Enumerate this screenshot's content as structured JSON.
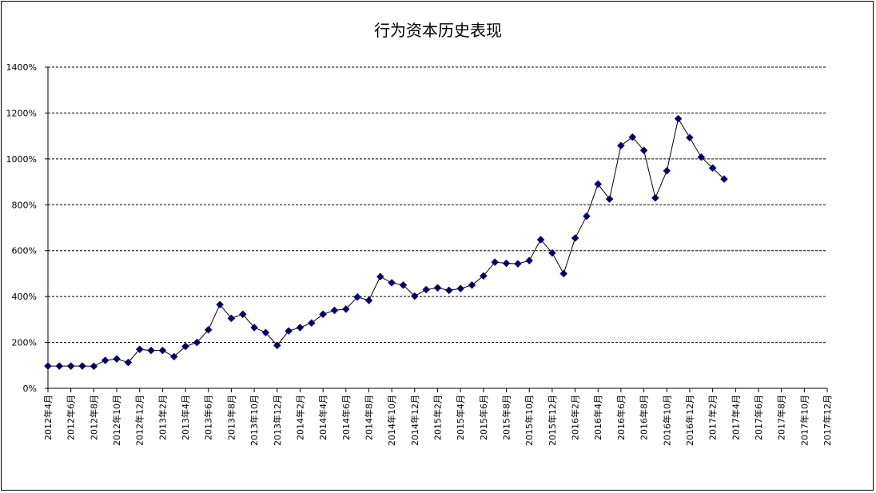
{
  "chart_data": {
    "type": "line",
    "title": "行为资本历史表现",
    "xlabel": "",
    "ylabel": "",
    "ylim": [
      0,
      1400
    ],
    "y_tick_labels": [
      "0%",
      "200%",
      "400%",
      "600%",
      "800%",
      "1000%",
      "1200%",
      "1400%"
    ],
    "y_tick_values": [
      0,
      200,
      400,
      600,
      800,
      1000,
      1200,
      1400
    ],
    "x_tick_labels": [
      "2012年4月",
      "2012年6月",
      "2012年8月",
      "2012年10月",
      "2012年12月",
      "2013年2月",
      "2013年4月",
      "2013年6月",
      "2013年8月",
      "2013年10月",
      "2013年12月",
      "2014年2月",
      "2014年4月",
      "2014年6月",
      "2014年8月",
      "2014年10月",
      "2014年12月",
      "2015年2月",
      "2015年4月",
      "2015年6月",
      "2015年8月",
      "2015年10月",
      "2015年12月",
      "2016年2月",
      "2016年4月",
      "2016年6月",
      "2016年8月",
      "2016年10月",
      "2016年12月",
      "2017年2月",
      "2017年4月",
      "2017年6月",
      "2017年8月",
      "2017年10月",
      "2017年12月"
    ],
    "grid": true,
    "line_color": "#000000",
    "marker_color": "#000066",
    "marker": "diamond",
    "series": [
      {
        "values": [
          97,
          97,
          97,
          97,
          96,
          122,
          128,
          113,
          170,
          165,
          165,
          138,
          183,
          200,
          255,
          365,
          305,
          323,
          265,
          243,
          187,
          250,
          265,
          285,
          323,
          340,
          345,
          398,
          383,
          487,
          460,
          450,
          402,
          430,
          438,
          427,
          435,
          450,
          490,
          550,
          545,
          543,
          557,
          648,
          590,
          500,
          655,
          750,
          890,
          825,
          1058,
          1095,
          1037,
          830,
          948,
          1175,
          1093,
          1008,
          960,
          912
        ]
      }
    ]
  }
}
